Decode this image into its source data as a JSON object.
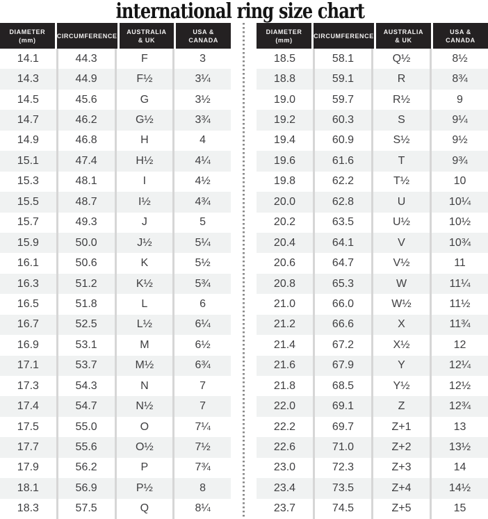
{
  "title": "international ring size chart",
  "header_labels": [
    "DIAMETER\n(mm)",
    "CIRCUMFERENCE",
    "AUSTRALIA\n& UK",
    "USA &\nCANADA"
  ],
  "colors": {
    "header_bg": "#242122",
    "header_text": "#f2f1f1",
    "row_alt": "#f0f2f2",
    "cell_text": "#3e3e40",
    "column_line": "#d6d6d6",
    "divider_dot": "#8a8a8a",
    "title_color": "#141414"
  },
  "chart_data": {
    "type": "table",
    "title": "international ring size chart",
    "columns": [
      "Diameter (mm)",
      "Circumference",
      "Australia & UK",
      "USA & Canada"
    ],
    "tables": [
      {
        "rows": [
          [
            "14.1",
            "44.3",
            "F",
            "3"
          ],
          [
            "14.3",
            "44.9",
            "F½",
            "3¼"
          ],
          [
            "14.5",
            "45.6",
            "G",
            "3½"
          ],
          [
            "14.7",
            "46.2",
            "G½",
            "3¾"
          ],
          [
            "14.9",
            "46.8",
            "H",
            "4"
          ],
          [
            "15.1",
            "47.4",
            "H½",
            "4¼"
          ],
          [
            "15.3",
            "48.1",
            "I",
            "4½"
          ],
          [
            "15.5",
            "48.7",
            "I½",
            "4¾"
          ],
          [
            "15.7",
            "49.3",
            "J",
            "5"
          ],
          [
            "15.9",
            "50.0",
            "J½",
            "5¼"
          ],
          [
            "16.1",
            "50.6",
            "K",
            "5½"
          ],
          [
            "16.3",
            "51.2",
            "K½",
            "5¾"
          ],
          [
            "16.5",
            "51.8",
            "L",
            "6"
          ],
          [
            "16.7",
            "52.5",
            "L½",
            "6¼"
          ],
          [
            "16.9",
            "53.1",
            "M",
            "6½"
          ],
          [
            "17.1",
            "53.7",
            "M½",
            "6¾"
          ],
          [
            "17.3",
            "54.3",
            "N",
            "7"
          ],
          [
            "17.4",
            "54.7",
            "N½",
            "7"
          ],
          [
            "17.5",
            "55.0",
            "O",
            "7¼"
          ],
          [
            "17.7",
            "55.6",
            "O½",
            "7½"
          ],
          [
            "17.9",
            "56.2",
            "P",
            "7¾"
          ],
          [
            "18.1",
            "56.9",
            "P½",
            "8"
          ],
          [
            "18.3",
            "57.5",
            "Q",
            "8¼"
          ]
        ]
      },
      {
        "rows": [
          [
            "18.5",
            "58.1",
            "Q½",
            "8½"
          ],
          [
            "18.8",
            "59.1",
            "R",
            "8¾"
          ],
          [
            "19.0",
            "59.7",
            "R½",
            "9"
          ],
          [
            "19.2",
            "60.3",
            "S",
            "9¼"
          ],
          [
            "19.4",
            "60.9",
            "S½",
            "9½"
          ],
          [
            "19.6",
            "61.6",
            "T",
            "9¾"
          ],
          [
            "19.8",
            "62.2",
            "T½",
            "10"
          ],
          [
            "20.0",
            "62.8",
            "U",
            "10¼"
          ],
          [
            "20.2",
            "63.5",
            "U½",
            "10½"
          ],
          [
            "20.4",
            "64.1",
            "V",
            "10¾"
          ],
          [
            "20.6",
            "64.7",
            "V½",
            "11"
          ],
          [
            "20.8",
            "65.3",
            "W",
            "11¼"
          ],
          [
            "21.0",
            "66.0",
            "W½",
            "11½"
          ],
          [
            "21.2",
            "66.6",
            "X",
            "11¾"
          ],
          [
            "21.4",
            "67.2",
            "X½",
            "12"
          ],
          [
            "21.6",
            "67.9",
            "Y",
            "12¼"
          ],
          [
            "21.8",
            "68.5",
            "Y½",
            "12½"
          ],
          [
            "22.0",
            "69.1",
            "Z",
            "12¾"
          ],
          [
            "22.2",
            "69.7",
            "Z+1",
            "13"
          ],
          [
            "22.6",
            "71.0",
            "Z+2",
            "13½"
          ],
          [
            "23.0",
            "72.3",
            "Z+3",
            "14"
          ],
          [
            "23.4",
            "73.5",
            "Z+4",
            "14½"
          ],
          [
            "23.7",
            "74.5",
            "Z+5",
            "15"
          ]
        ]
      }
    ]
  }
}
